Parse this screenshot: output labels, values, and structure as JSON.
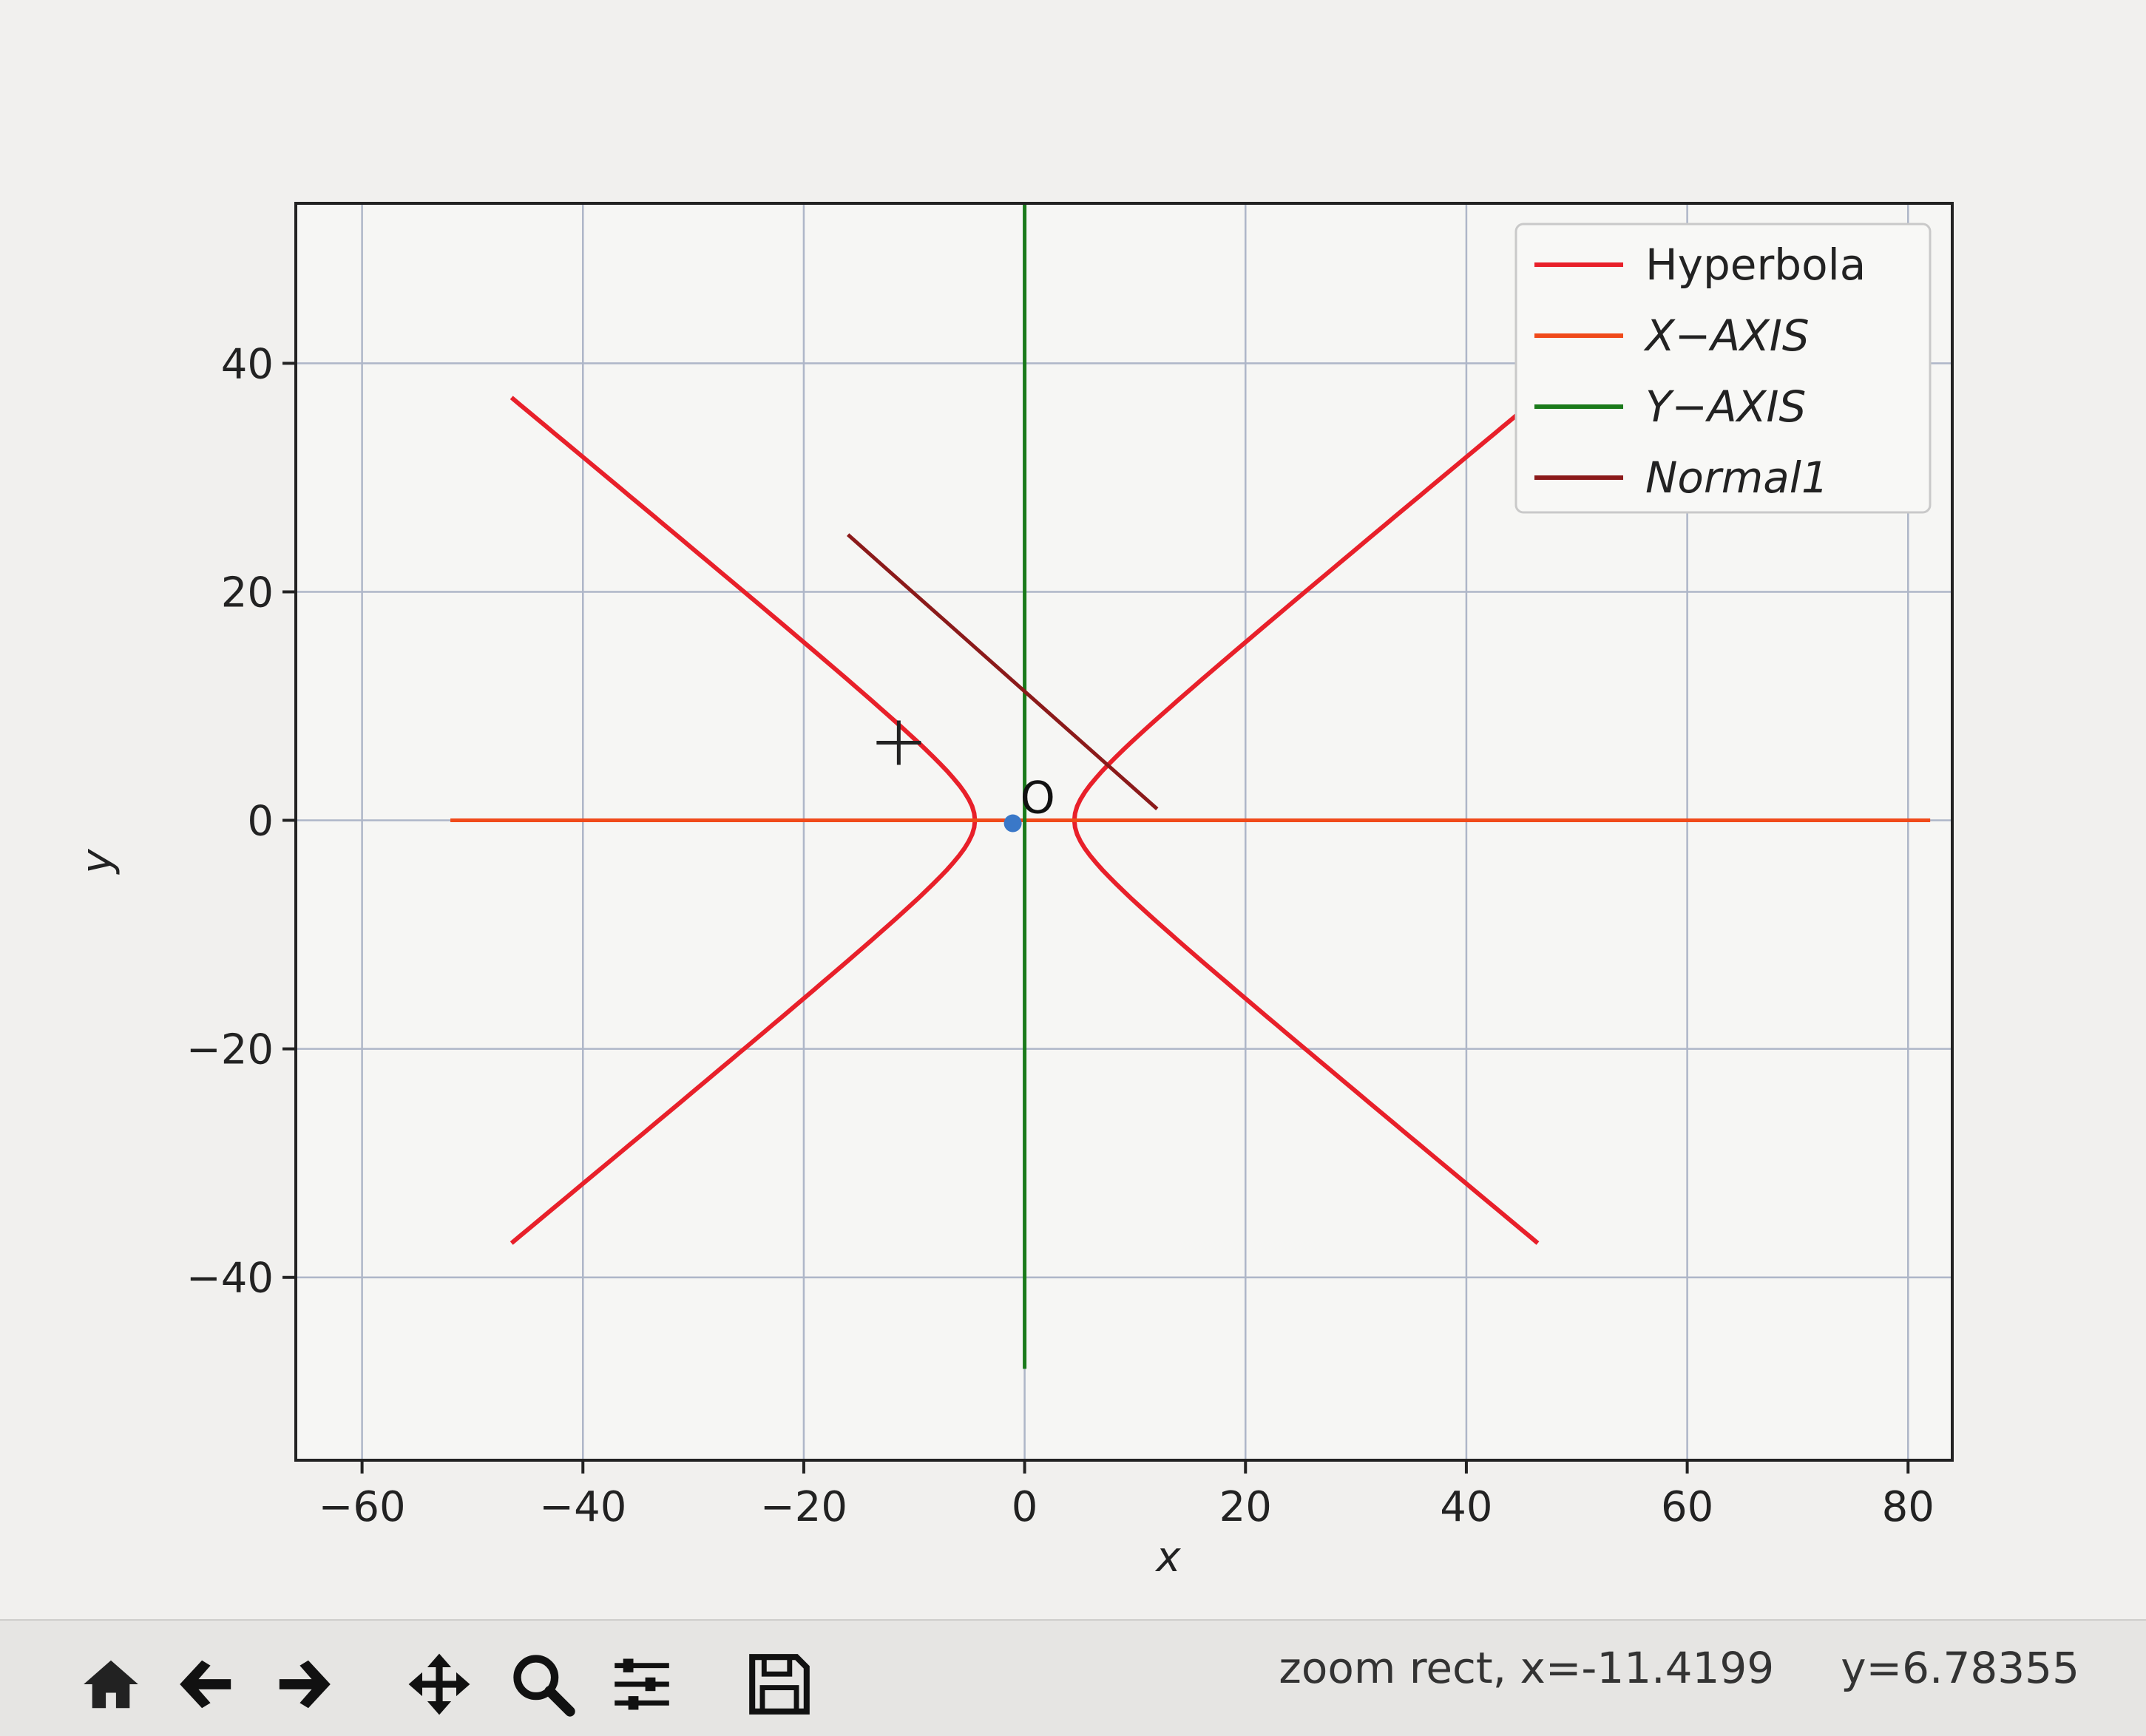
{
  "toolbar": {
    "buttons": [
      {
        "name": "home-icon",
        "label": "Home"
      },
      {
        "name": "back-icon",
        "label": "Back"
      },
      {
        "name": "forward-icon",
        "label": "Forward"
      },
      {
        "name": "pan-icon",
        "label": "Pan"
      },
      {
        "name": "zoom-icon",
        "label": "Zoom"
      },
      {
        "name": "configure-subplots-icon",
        "label": "Subplots"
      },
      {
        "name": "save-icon",
        "label": "Save"
      }
    ]
  },
  "status": {
    "mode": "zoom rect, x=-11.4199",
    "y": "y=6.78355"
  },
  "chart_data": {
    "type": "line",
    "title": "",
    "xlabel": "x",
    "ylabel": "y",
    "xlim": [
      -66,
      84
    ],
    "ylim": [
      -56,
      54
    ],
    "xticks": [
      -60,
      -40,
      -20,
      0,
      20,
      40,
      60,
      80
    ],
    "yticks": [
      -40,
      -20,
      0,
      20,
      40
    ],
    "xtick_labels": [
      "−60",
      "−40",
      "−20",
      "0",
      "20",
      "40",
      "60",
      "80"
    ],
    "ytick_labels": [
      "−40",
      "−20",
      "0",
      "20",
      "40"
    ],
    "grid": true,
    "legend_position": "top-right",
    "series": [
      {
        "name": "Hyperbola",
        "color": "#e8202a",
        "kind": "hyperbola",
        "a": 4.5,
        "b": 3.6,
        "ymax": 37
      },
      {
        "name": "X−AXIS",
        "color": "#f04a1a",
        "x": [
          -52,
          82
        ],
        "y": [
          0,
          0
        ]
      },
      {
        "name": "Y−AXIS",
        "color": "#1a7a1a",
        "x": [
          0,
          0
        ],
        "y": [
          -48,
          54
        ]
      },
      {
        "name": "Normal1",
        "color": "#8b1a1a",
        "x": [
          -16,
          12
        ],
        "y": [
          25,
          1
        ]
      }
    ],
    "annotations": [
      {
        "text": "O",
        "x": 0,
        "y": 0
      }
    ],
    "markers": [
      {
        "x": -11.4,
        "y": 6.8,
        "kind": "crosshair"
      }
    ]
  }
}
